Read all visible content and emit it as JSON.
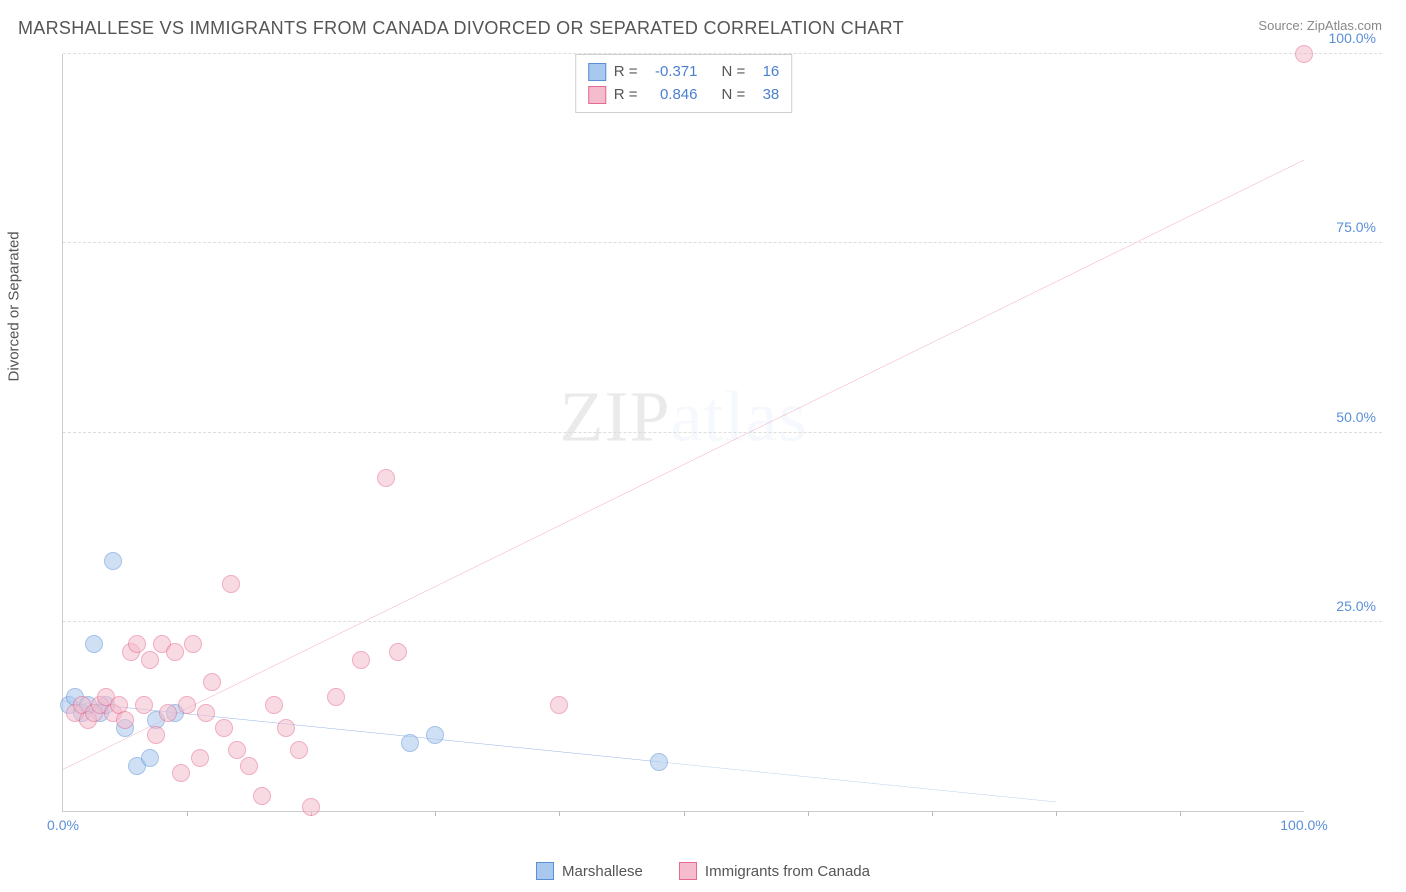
{
  "title": "MARSHALLESE VS IMMIGRANTS FROM CANADA DIVORCED OR SEPARATED CORRELATION CHART",
  "source_label": "Source:",
  "source_name": "ZipAtlas.com",
  "yaxis_label": "Divorced or Separated",
  "watermark_a": "ZIP",
  "watermark_b": "atlas",
  "chart": {
    "type": "scatter",
    "xlim": [
      0,
      100
    ],
    "ylim": [
      0,
      100
    ],
    "ytick_step": 25,
    "xtick_labels": [
      "0.0%",
      "100.0%"
    ],
    "ytick_labels": [
      "25.0%",
      "50.0%",
      "75.0%",
      "100.0%"
    ],
    "xtick_minor": [
      10,
      20,
      30,
      40,
      50,
      60,
      70,
      80,
      90
    ],
    "background": "#ffffff",
    "grid_color": "#e2e2e2",
    "axis_color": "#cccccc",
    "tick_label_color": "#5b8fd6",
    "point_radius": 8,
    "series": [
      {
        "name": "Marshallese",
        "color_fill": "#a9c8ee",
        "color_stroke": "#5b8fd6",
        "R": "-0.371",
        "N": "16",
        "trend": {
          "x1": 0,
          "y1": 14.5,
          "x2": 48,
          "y2": 6.5,
          "dash_x2": 80,
          "dash_y2": 1.2,
          "color": "#4a7fd0",
          "width": 2
        },
        "points": [
          [
            0.5,
            14
          ],
          [
            1,
            15
          ],
          [
            1.5,
            13
          ],
          [
            2,
            14
          ],
          [
            2.5,
            22
          ],
          [
            3,
            13
          ],
          [
            3.5,
            14
          ],
          [
            4,
            33
          ],
          [
            5,
            11
          ],
          [
            6,
            6
          ],
          [
            7,
            7
          ],
          [
            7.5,
            12
          ],
          [
            9,
            13
          ],
          [
            28,
            9
          ],
          [
            30,
            10
          ],
          [
            48,
            6.5
          ]
        ]
      },
      {
        "name": "Immigrants from Canada",
        "color_fill": "#f4bccd",
        "color_stroke": "#e56a91",
        "R": "0.846",
        "N": "38",
        "trend": {
          "x1": 0,
          "y1": 5.5,
          "x2": 100,
          "y2": 86,
          "color": "#e56a91",
          "width": 2
        },
        "points": [
          [
            1,
            13
          ],
          [
            1.5,
            14
          ],
          [
            2,
            12
          ],
          [
            2.5,
            13
          ],
          [
            3,
            14
          ],
          [
            3.5,
            15
          ],
          [
            4,
            13
          ],
          [
            4.5,
            14
          ],
          [
            5,
            12
          ],
          [
            5.5,
            21
          ],
          [
            6,
            22
          ],
          [
            6.5,
            14
          ],
          [
            7,
            20
          ],
          [
            7.5,
            10
          ],
          [
            8,
            22
          ],
          [
            8.5,
            13
          ],
          [
            9,
            21
          ],
          [
            9.5,
            5
          ],
          [
            10,
            14
          ],
          [
            10.5,
            22
          ],
          [
            11,
            7
          ],
          [
            11.5,
            13
          ],
          [
            12,
            17
          ],
          [
            13,
            11
          ],
          [
            13.5,
            30
          ],
          [
            14,
            8
          ],
          [
            15,
            6
          ],
          [
            16,
            2
          ],
          [
            17,
            14
          ],
          [
            18,
            11
          ],
          [
            19,
            8
          ],
          [
            20,
            0.5
          ],
          [
            22,
            15
          ],
          [
            24,
            20
          ],
          [
            26,
            44
          ],
          [
            27,
            21
          ],
          [
            40,
            14
          ],
          [
            100,
            100
          ]
        ]
      }
    ]
  },
  "stats_box": {
    "R_label": "R =",
    "N_label": "N ="
  },
  "bottom_legend": [
    "Marshallese",
    "Immigrants from Canada"
  ]
}
